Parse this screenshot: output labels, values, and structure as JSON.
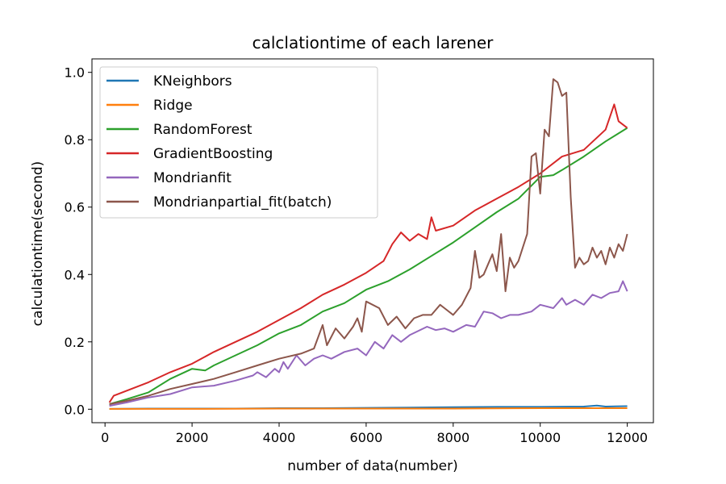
{
  "chart_data": {
    "type": "line",
    "title": "calclationtime of each larener",
    "xlabel": "number of data(number)",
    "ylabel": "calculationtime(second)",
    "xlim": [
      -300,
      12600
    ],
    "ylim": [
      -0.04,
      1.04
    ],
    "xticks": [
      0,
      2000,
      4000,
      6000,
      8000,
      10000,
      12000
    ],
    "xtick_labels": [
      "0",
      "2000",
      "4000",
      "6000",
      "8000",
      "10000",
      "12000"
    ],
    "yticks": [
      0.0,
      0.2,
      0.4,
      0.6,
      0.8,
      1.0
    ],
    "ytick_labels": [
      "0.0",
      "0.2",
      "0.4",
      "0.6",
      "0.8",
      "1.0"
    ],
    "grid": false,
    "legend_position": "upper-left",
    "series": [
      {
        "name": "KNeighbors",
        "color": "#1f77b4",
        "x": [
          100,
          1000,
          2000,
          3000,
          4000,
          5000,
          6000,
          7000,
          8000,
          9000,
          10000,
          11000,
          11300,
          11500,
          12000
        ],
        "y": [
          0.001,
          0.002,
          0.002,
          0.002,
          0.003,
          0.003,
          0.004,
          0.005,
          0.006,
          0.007,
          0.007,
          0.008,
          0.011,
          0.008,
          0.009
        ]
      },
      {
        "name": "Ridge",
        "color": "#ff7f0e",
        "x": [
          100,
          2000,
          4000,
          6000,
          8000,
          10000,
          12000
        ],
        "y": [
          0.001,
          0.001,
          0.002,
          0.002,
          0.002,
          0.003,
          0.003
        ]
      },
      {
        "name": "RandomForest",
        "color": "#2ca02c",
        "x": [
          100,
          500,
          1000,
          1500,
          2000,
          2300,
          2500,
          3000,
          3500,
          4000,
          4500,
          5000,
          5500,
          6000,
          6500,
          7000,
          7500,
          8000,
          8500,
          9000,
          9500,
          10000,
          10300,
          10500,
          11000,
          11500,
          12000
        ],
        "y": [
          0.015,
          0.03,
          0.05,
          0.09,
          0.12,
          0.115,
          0.13,
          0.16,
          0.19,
          0.225,
          0.25,
          0.29,
          0.315,
          0.355,
          0.38,
          0.415,
          0.455,
          0.495,
          0.54,
          0.585,
          0.625,
          0.69,
          0.695,
          0.71,
          0.75,
          0.795,
          0.835
        ]
      },
      {
        "name": "GradientBoosting",
        "color": "#d62728",
        "x": [
          100,
          200,
          500,
          1000,
          1500,
          2000,
          2500,
          3000,
          3500,
          4000,
          4500,
          5000,
          5500,
          6000,
          6400,
          6600,
          6800,
          7000,
          7200,
          7400,
          7500,
          7600,
          8000,
          8500,
          9000,
          9500,
          10000,
          10500,
          11000,
          11500,
          11700,
          11800,
          12000
        ],
        "y": [
          0.02,
          0.04,
          0.055,
          0.08,
          0.11,
          0.135,
          0.17,
          0.2,
          0.23,
          0.265,
          0.3,
          0.34,
          0.37,
          0.405,
          0.44,
          0.49,
          0.525,
          0.5,
          0.52,
          0.505,
          0.57,
          0.53,
          0.545,
          0.59,
          0.625,
          0.66,
          0.7,
          0.75,
          0.77,
          0.83,
          0.905,
          0.855,
          0.835
        ]
      },
      {
        "name": "Mondrianfit",
        "color": "#9467bd",
        "x": [
          100,
          500,
          1000,
          1500,
          2000,
          2500,
          3000,
          3400,
          3500,
          3700,
          3900,
          4000,
          4100,
          4200,
          4400,
          4600,
          4800,
          5000,
          5200,
          5500,
          5800,
          6000,
          6200,
          6400,
          6600,
          6800,
          7000,
          7400,
          7600,
          7800,
          8000,
          8300,
          8500,
          8700,
          8900,
          9100,
          9300,
          9500,
          9800,
          10000,
          10300,
          10500,
          10600,
          10800,
          11000,
          11200,
          11400,
          11600,
          11800,
          11900,
          12000
        ],
        "y": [
          0.01,
          0.02,
          0.035,
          0.045,
          0.065,
          0.07,
          0.085,
          0.1,
          0.11,
          0.095,
          0.12,
          0.11,
          0.14,
          0.12,
          0.16,
          0.13,
          0.15,
          0.16,
          0.15,
          0.17,
          0.18,
          0.16,
          0.2,
          0.18,
          0.22,
          0.2,
          0.22,
          0.245,
          0.235,
          0.24,
          0.23,
          0.25,
          0.245,
          0.29,
          0.285,
          0.27,
          0.28,
          0.28,
          0.29,
          0.31,
          0.3,
          0.33,
          0.31,
          0.325,
          0.31,
          0.34,
          0.33,
          0.345,
          0.35,
          0.38,
          0.35
        ]
      },
      {
        "name": "Mondrianpartial_fit(batch)",
        "color": "#8c564b",
        "x": [
          100,
          500,
          1000,
          1500,
          2000,
          2500,
          3000,
          3500,
          4000,
          4500,
          4800,
          5000,
          5100,
          5300,
          5500,
          5700,
          5800,
          5900,
          6000,
          6300,
          6500,
          6700,
          6900,
          7100,
          7300,
          7500,
          7700,
          7800,
          8000,
          8200,
          8400,
          8500,
          8600,
          8700,
          8800,
          8900,
          9000,
          9100,
          9200,
          9300,
          9400,
          9500,
          9700,
          9800,
          9900,
          10000,
          10100,
          10200,
          10300,
          10400,
          10500,
          10600,
          10700,
          10800,
          10900,
          11000,
          11100,
          11200,
          11300,
          11400,
          11500,
          11600,
          11700,
          11800,
          11900,
          12000
        ],
        "y": [
          0.015,
          0.025,
          0.04,
          0.06,
          0.075,
          0.09,
          0.11,
          0.13,
          0.15,
          0.165,
          0.18,
          0.25,
          0.19,
          0.24,
          0.21,
          0.245,
          0.27,
          0.23,
          0.32,
          0.3,
          0.25,
          0.275,
          0.24,
          0.27,
          0.28,
          0.28,
          0.31,
          0.3,
          0.28,
          0.31,
          0.36,
          0.47,
          0.39,
          0.4,
          0.43,
          0.46,
          0.41,
          0.52,
          0.35,
          0.45,
          0.42,
          0.44,
          0.52,
          0.75,
          0.76,
          0.64,
          0.83,
          0.81,
          0.98,
          0.97,
          0.93,
          0.94,
          0.63,
          0.42,
          0.45,
          0.43,
          0.44,
          0.48,
          0.45,
          0.47,
          0.43,
          0.48,
          0.45,
          0.49,
          0.47,
          0.52
        ]
      }
    ]
  }
}
